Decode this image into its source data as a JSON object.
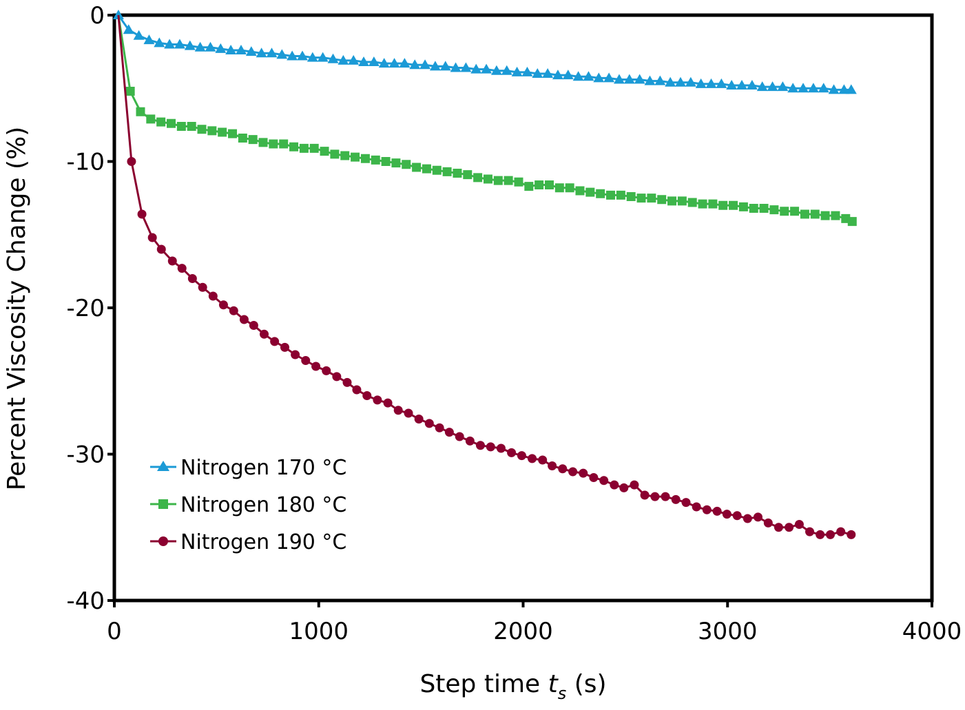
{
  "chart_data": {
    "type": "line",
    "title": "",
    "xlabel": "Step time t_s (s)",
    "xlabel_parts": {
      "prefix": "Step time ",
      "var": "t",
      "sub": "s",
      "suffix": " (s)"
    },
    "ylabel": "Percent Viscosity Change (%)",
    "xlim": [
      0,
      4000
    ],
    "ylim": [
      -40,
      0
    ],
    "x_ticks": [
      0,
      1000,
      2000,
      3000,
      4000
    ],
    "x_tick_labels": [
      "0",
      "1000",
      "2000",
      "3000",
      "4000"
    ],
    "y_ticks": [
      0,
      -10,
      -20,
      -30,
      -40
    ],
    "y_tick_labels": [
      "0",
      "-10",
      "-20",
      "-30",
      "-40"
    ],
    "grid": false,
    "legend_position": "lower-left inside",
    "series": [
      {
        "name": "Nitrogen 170 °C",
        "color": "#1B9AD6",
        "marker": "triangle",
        "x": [
          20,
          70,
          120,
          170,
          220,
          270,
          320,
          370,
          420,
          470,
          520,
          570,
          620,
          670,
          720,
          770,
          820,
          870,
          920,
          970,
          1020,
          1070,
          1120,
          1170,
          1220,
          1270,
          1320,
          1370,
          1420,
          1470,
          1520,
          1570,
          1620,
          1670,
          1720,
          1770,
          1820,
          1870,
          1920,
          1970,
          2020,
          2070,
          2120,
          2170,
          2220,
          2270,
          2320,
          2370,
          2420,
          2470,
          2520,
          2570,
          2620,
          2670,
          2720,
          2770,
          2820,
          2870,
          2920,
          2970,
          3020,
          3070,
          3120,
          3170,
          3220,
          3270,
          3320,
          3370,
          3420,
          3470,
          3520,
          3570,
          3605
        ],
        "values": [
          0,
          -1.0,
          -1.4,
          -1.7,
          -1.9,
          -2.0,
          -2.0,
          -2.1,
          -2.2,
          -2.2,
          -2.3,
          -2.4,
          -2.4,
          -2.5,
          -2.6,
          -2.6,
          -2.7,
          -2.8,
          -2.8,
          -2.9,
          -2.9,
          -3.0,
          -3.1,
          -3.1,
          -3.2,
          -3.2,
          -3.3,
          -3.3,
          -3.3,
          -3.4,
          -3.4,
          -3.5,
          -3.5,
          -3.6,
          -3.6,
          -3.7,
          -3.7,
          -3.8,
          -3.8,
          -3.9,
          -3.9,
          -4.0,
          -4.0,
          -4.1,
          -4.1,
          -4.2,
          -4.2,
          -4.3,
          -4.3,
          -4.4,
          -4.4,
          -4.4,
          -4.5,
          -4.5,
          -4.6,
          -4.6,
          -4.6,
          -4.7,
          -4.7,
          -4.7,
          -4.8,
          -4.8,
          -4.8,
          -4.9,
          -4.9,
          -4.9,
          -5.0,
          -5.0,
          -5.0,
          -5.0,
          -5.1,
          -5.1,
          -5.1
        ]
      },
      {
        "name": "Nitrogen 180 °C",
        "color": "#3DB54A",
        "marker": "square",
        "x": [
          78,
          128,
          178,
          228,
          278,
          328,
          378,
          428,
          478,
          528,
          578,
          628,
          678,
          728,
          778,
          828,
          878,
          928,
          978,
          1028,
          1078,
          1128,
          1178,
          1228,
          1278,
          1328,
          1378,
          1428,
          1478,
          1528,
          1578,
          1628,
          1678,
          1728,
          1778,
          1828,
          1878,
          1928,
          1978,
          2028,
          2078,
          2128,
          2178,
          2228,
          2278,
          2328,
          2378,
          2428,
          2478,
          2528,
          2578,
          2628,
          2678,
          2728,
          2778,
          2828,
          2878,
          2928,
          2978,
          3028,
          3078,
          3128,
          3178,
          3228,
          3278,
          3328,
          3378,
          3428,
          3478,
          3528,
          3578,
          3610
        ],
        "values": [
          -5.2,
          -6.6,
          -7.1,
          -7.3,
          -7.4,
          -7.6,
          -7.6,
          -7.8,
          -7.9,
          -8.0,
          -8.1,
          -8.4,
          -8.5,
          -8.7,
          -8.8,
          -8.8,
          -9.0,
          -9.1,
          -9.1,
          -9.3,
          -9.5,
          -9.6,
          -9.7,
          -9.8,
          -9.9,
          -10.0,
          -10.1,
          -10.2,
          -10.4,
          -10.5,
          -10.6,
          -10.7,
          -10.8,
          -10.9,
          -11.1,
          -11.2,
          -11.3,
          -11.3,
          -11.4,
          -11.7,
          -11.6,
          -11.6,
          -11.8,
          -11.8,
          -12.0,
          -12.1,
          -12.2,
          -12.3,
          -12.3,
          -12.4,
          -12.5,
          -12.5,
          -12.6,
          -12.7,
          -12.7,
          -12.8,
          -12.9,
          -12.9,
          -13.0,
          -13.0,
          -13.1,
          -13.2,
          -13.2,
          -13.3,
          -13.4,
          -13.4,
          -13.6,
          -13.6,
          -13.7,
          -13.7,
          -13.9,
          -14.1
        ]
      },
      {
        "name": "Nitrogen 190 °C",
        "color": "#8B0030",
        "marker": "circle",
        "x": [
          84,
          135,
          186,
          230,
          284,
          331,
          382,
          432,
          483,
          534,
          584,
          635,
          682,
          733,
          784,
          834,
          885,
          936,
          986,
          1037,
          1088,
          1139,
          1186,
          1236,
          1287,
          1338,
          1389,
          1439,
          1490,
          1541,
          1591,
          1639,
          1689,
          1740,
          1791,
          1841,
          1892,
          1943,
          1993,
          2044,
          2095,
          2142,
          2193,
          2243,
          2294,
          2345,
          2395,
          2446,
          2493,
          2544,
          2595,
          2645,
          2696,
          2747,
          2797,
          2848,
          2899,
          2949,
          2997,
          3047,
          3098,
          3149,
          3199,
          3250,
          3301,
          3351,
          3402,
          3453,
          3503,
          3554,
          3605
        ],
        "values": [
          -10.0,
          -13.6,
          -15.2,
          -16.0,
          -16.8,
          -17.3,
          -18.0,
          -18.6,
          -19.2,
          -19.8,
          -20.2,
          -20.8,
          -21.2,
          -21.8,
          -22.3,
          -22.7,
          -23.2,
          -23.6,
          -24.0,
          -24.3,
          -24.7,
          -25.1,
          -25.6,
          -26.0,
          -26.3,
          -26.5,
          -27.0,
          -27.2,
          -27.6,
          -27.9,
          -28.2,
          -28.5,
          -28.8,
          -29.1,
          -29.4,
          -29.5,
          -29.6,
          -29.9,
          -30.1,
          -30.3,
          -30.4,
          -30.8,
          -31.0,
          -31.2,
          -31.3,
          -31.6,
          -31.8,
          -32.1,
          -32.3,
          -32.1,
          -32.8,
          -32.9,
          -32.9,
          -33.1,
          -33.3,
          -33.6,
          -33.8,
          -33.9,
          -34.1,
          -34.2,
          -34.4,
          -34.3,
          -34.7,
          -35.0,
          -35.0,
          -34.8,
          -35.3,
          -35.5,
          -35.5,
          -35.3,
          -35.5
        ]
      }
    ]
  },
  "legend": {
    "items": [
      {
        "label": "Nitrogen 170 °C"
      },
      {
        "label": "Nitrogen 180 °C"
      },
      {
        "label": "Nitrogen 190 °C"
      }
    ]
  }
}
